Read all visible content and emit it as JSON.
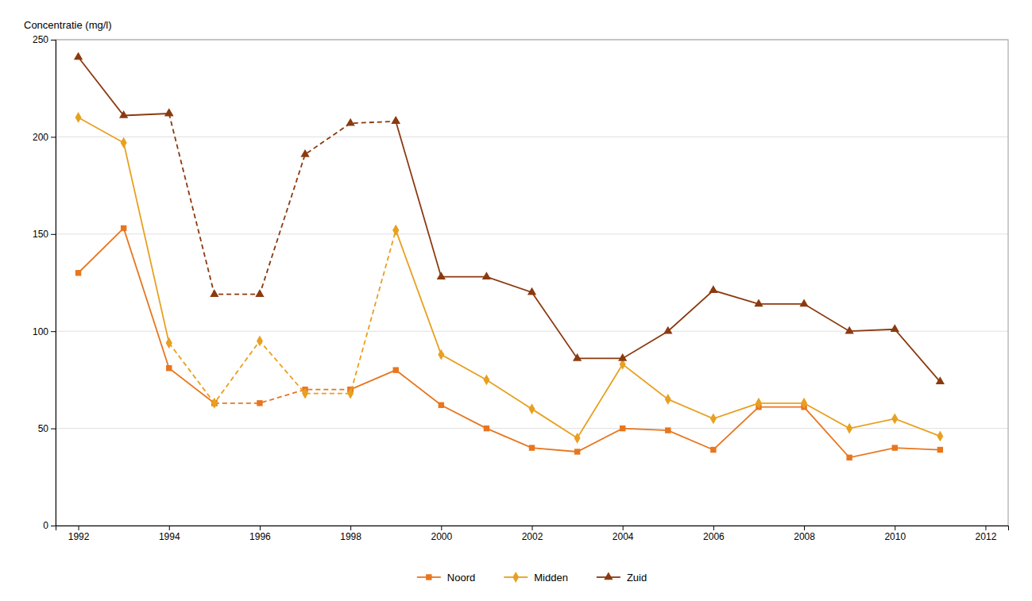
{
  "chart_data": {
    "type": "line",
    "ylabel": "Concentratie (mg/l)",
    "xlim": [
      1991.5,
      2012.5
    ],
    "xticks": [
      1992,
      1994,
      1996,
      1998,
      2000,
      2002,
      2004,
      2006,
      2008,
      2010,
      2012
    ],
    "ylim": [
      0,
      250
    ],
    "yticks": [
      0,
      50,
      100,
      150,
      200,
      250
    ],
    "grid": true,
    "legend": "bottom",
    "series": [
      {
        "name": "Noord",
        "color": "#E8761E",
        "marker": "square",
        "line_style": "solid",
        "x": [
          1992,
          1993,
          1994,
          1995
        ],
        "values": [
          130,
          153,
          81,
          63
        ]
      },
      {
        "color": "#E8761E",
        "marker": "square",
        "line_style": "dashed",
        "x": [
          1995,
          1996,
          1997,
          1998
        ],
        "values": [
          63,
          63,
          70,
          70
        ]
      },
      {
        "color": "#E8761E",
        "marker": "square",
        "line_style": "solid",
        "x": [
          1998,
          1999,
          2000,
          2001,
          2002,
          2003,
          2004,
          2005,
          2006,
          2007,
          2008,
          2009,
          2010,
          2011
        ],
        "values": [
          70,
          80,
          62,
          50,
          40,
          38,
          50,
          49,
          39,
          61,
          61,
          35,
          40,
          39
        ]
      },
      {
        "name": "Midden",
        "color": "#E8A020",
        "marker": "diamond",
        "line_style": "solid",
        "x": [
          1992,
          1993,
          1994
        ],
        "values": [
          210,
          197,
          94
        ]
      },
      {
        "color": "#E8A020",
        "marker": "diamond",
        "line_style": "dashed",
        "x": [
          1994,
          1995,
          1996,
          1997,
          1998,
          1999
        ],
        "values": [
          94,
          63,
          95,
          68,
          68,
          152
        ]
      },
      {
        "color": "#E8A020",
        "marker": "diamond",
        "line_style": "solid",
        "x": [
          1999,
          2000,
          2001,
          2002,
          2003,
          2004,
          2005,
          2006,
          2007,
          2008,
          2009,
          2010,
          2011
        ],
        "values": [
          152,
          88,
          75,
          60,
          45,
          83,
          65,
          55,
          63,
          63,
          50,
          55,
          46
        ]
      },
      {
        "name": "Zuid",
        "color": "#8B3A10",
        "marker": "triangle",
        "line_style": "solid",
        "x": [
          1992,
          1993,
          1994
        ],
        "values": [
          241,
          211,
          212
        ]
      },
      {
        "color": "#8B3A10",
        "marker": "triangle",
        "line_style": "dashed",
        "x": [
          1994,
          1995,
          1996,
          1997,
          1998,
          1999
        ],
        "values": [
          212,
          119,
          119,
          191,
          207,
          208
        ]
      },
      {
        "color": "#8B3A10",
        "marker": "triangle",
        "line_style": "solid",
        "x": [
          1999,
          2000,
          2001,
          2002,
          2003,
          2004,
          2005,
          2006,
          2007,
          2008,
          2009,
          2010,
          2011
        ],
        "values": [
          208,
          128,
          128,
          120,
          86,
          86,
          100,
          121,
          114,
          114,
          100,
          101,
          74
        ]
      }
    ]
  }
}
